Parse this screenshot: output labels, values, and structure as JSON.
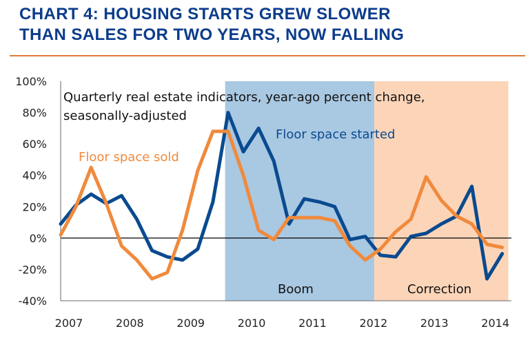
{
  "title_line1": "CHART 4: HOUSING STARTS GREW SLOWER",
  "title_line2": "THAN SALES FOR TWO YEARS, NOW FALLING",
  "colors": {
    "title": "#0b3c8c",
    "rule": "#e07a3a",
    "started": "#0a4a8f",
    "sold": "#f08a3c",
    "boom_band": "#a9c8e2",
    "correction_band": "#fcd5b9"
  },
  "chart_data": {
    "type": "line",
    "ylim": [
      -40,
      100
    ],
    "xlim": [
      2007,
      2014.4
    ],
    "y_ticks": [
      100,
      80,
      60,
      40,
      20,
      0,
      -20,
      -40
    ],
    "y_tick_labels": [
      "100%",
      "80%",
      "60%",
      "40%",
      "20%",
      "0%",
      "-20%",
      "-40%"
    ],
    "x_ticks": [
      2007,
      2008,
      2009,
      2010,
      2011,
      2012,
      2013,
      2014
    ],
    "x_tick_labels": [
      "2007",
      "2008",
      "2009",
      "2010",
      "2011",
      "2012",
      "2013",
      "2014"
    ],
    "annotation_lines": [
      "Quarterly real estate indicators, year-ago percent change,",
      "seasonally-adjusted"
    ],
    "regions": [
      {
        "label": "Boom",
        "start": 2009.7,
        "end": 2012.15,
        "color": "#a9c8e2"
      },
      {
        "label": "Correction",
        "start": 2012.15,
        "end": 2014.35,
        "color": "#fcd5b9"
      }
    ],
    "series": [
      {
        "name": "Floor space started",
        "color": "#0a4a8f",
        "x": [
          2007.0,
          2007.25,
          2007.5,
          2007.75,
          2008.0,
          2008.25,
          2008.5,
          2008.75,
          2009.0,
          2009.25,
          2009.5,
          2009.75,
          2010.0,
          2010.25,
          2010.5,
          2010.75,
          2011.0,
          2011.25,
          2011.5,
          2011.75,
          2012.0,
          2012.25,
          2012.5,
          2012.75,
          2013.0,
          2013.25,
          2013.5,
          2013.75,
          2014.0,
          2014.25
        ],
        "values": [
          9,
          21,
          28,
          22,
          27,
          12,
          -8,
          -12,
          -14,
          -7,
          23,
          80,
          55,
          70,
          49,
          9,
          25,
          23,
          20,
          -1,
          1,
          -11,
          -12,
          1,
          3,
          9,
          14,
          33,
          -26,
          -10
        ]
      },
      {
        "name": "Floor space sold",
        "color": "#f08a3c",
        "x": [
          2007.0,
          2007.25,
          2007.5,
          2007.75,
          2008.0,
          2008.25,
          2008.5,
          2008.75,
          2009.0,
          2009.25,
          2009.5,
          2009.75,
          2010.0,
          2010.25,
          2010.5,
          2010.75,
          2011.0,
          2011.25,
          2011.5,
          2011.75,
          2012.0,
          2012.25,
          2012.5,
          2012.75,
          2013.0,
          2013.25,
          2013.5,
          2013.75,
          2014.0,
          2014.25
        ],
        "values": [
          2,
          20,
          45,
          22,
          -5,
          -14,
          -26,
          -22,
          5,
          43,
          68,
          68,
          40,
          5,
          -1,
          13,
          13,
          13,
          11,
          -5,
          -14,
          -7,
          4,
          12,
          39,
          24,
          14,
          9,
          -4,
          -6
        ]
      }
    ]
  }
}
